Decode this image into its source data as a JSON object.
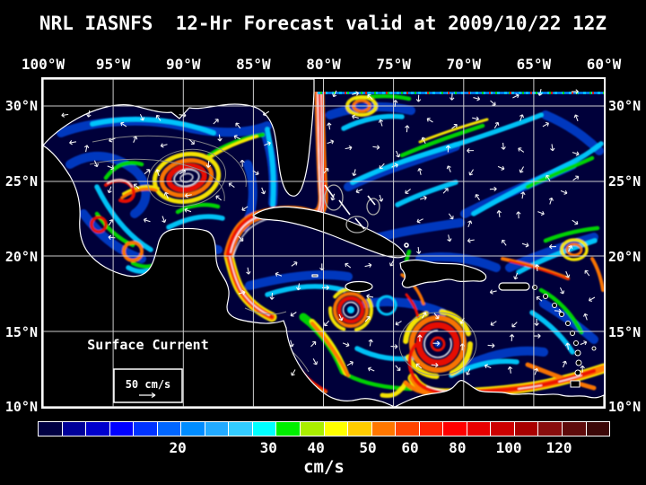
{
  "title": "NRL IASNFS  12-Hr Forecast valid at 2009/10/22 12Z",
  "axes": {
    "lon_labels": [
      "100°W",
      "95°W",
      "90°W",
      "85°W",
      "80°W",
      "75°W",
      "70°W",
      "65°W",
      "60°W"
    ],
    "lat_labels": [
      "30°N",
      "25°N",
      "20°N",
      "15°N",
      "10°N"
    ]
  },
  "map": {
    "overlay_label": "Surface Current",
    "scale_box_label": "50 cm/s"
  },
  "colorbar": {
    "unit": "cm/s",
    "ticks": [
      {
        "label": "20",
        "pct": 24.4
      },
      {
        "label": "30",
        "pct": 40.3
      },
      {
        "label": "40",
        "pct": 48.6
      },
      {
        "label": "50",
        "pct": 57.7
      },
      {
        "label": "60",
        "pct": 65.1
      },
      {
        "label": "80",
        "pct": 73.4
      },
      {
        "label": "100",
        "pct": 82.4
      },
      {
        "label": "120",
        "pct": 91.2
      }
    ],
    "colors": [
      "#000042",
      "#000099",
      "#0000CC",
      "#0000FF",
      "#0033FF",
      "#0066FF",
      "#008CFF",
      "#22AAFF",
      "#33CCFF",
      "#00FFFF",
      "#00EE00",
      "#AAEE00",
      "#FFFF00",
      "#FFCC00",
      "#FF7700",
      "#FF4400",
      "#FF2200",
      "#FF0000",
      "#E80000",
      "#CC0000",
      "#A80000",
      "#880D0D",
      "#5E0B0B",
      "#3B0707"
    ]
  },
  "colors": {
    "background": "#000000",
    "ocean": "#00003A",
    "grid": "#D8D8D8",
    "text": "#FFFFFF",
    "coastline": "#FFFFFF",
    "contour": "#909090"
  }
}
